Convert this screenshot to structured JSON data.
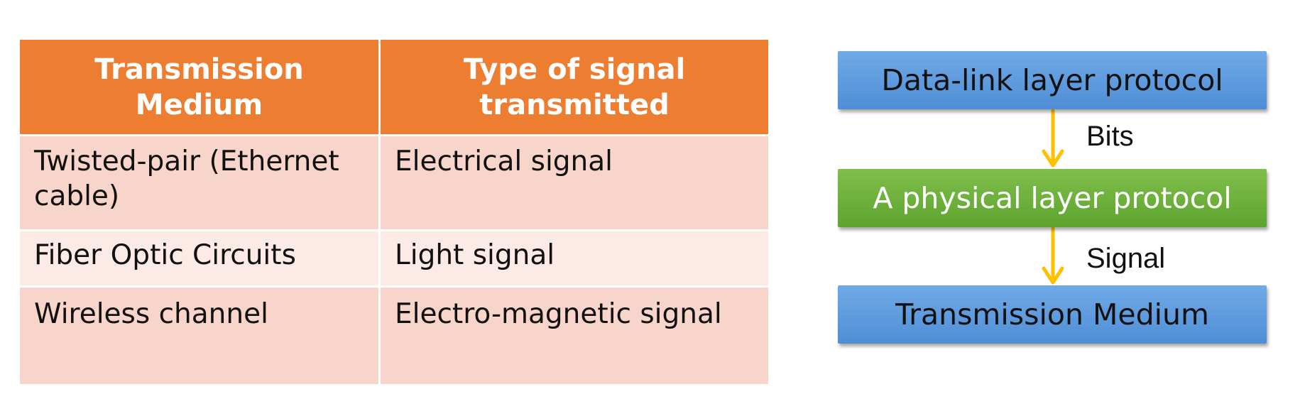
{
  "table": {
    "headers": [
      "Transmission Medium",
      "Type of signal transmitted"
    ],
    "rows": [
      [
        "Twisted-pair (Ethernet cable)",
        "Electrical signal"
      ],
      [
        "Fiber Optic Circuits",
        "Light signal"
      ],
      [
        "Wireless channel",
        "Electro-magnetic signal"
      ]
    ]
  },
  "diagram": {
    "boxes": [
      "Data-link layer protocol",
      "A physical layer protocol",
      "Transmission Medium"
    ],
    "arrow_labels": [
      "Bits",
      "Signal"
    ],
    "colors": {
      "blue": "#5b9bd5",
      "green": "#70ad47",
      "arrow": "#ffc000",
      "header": "#ed7d31"
    }
  }
}
